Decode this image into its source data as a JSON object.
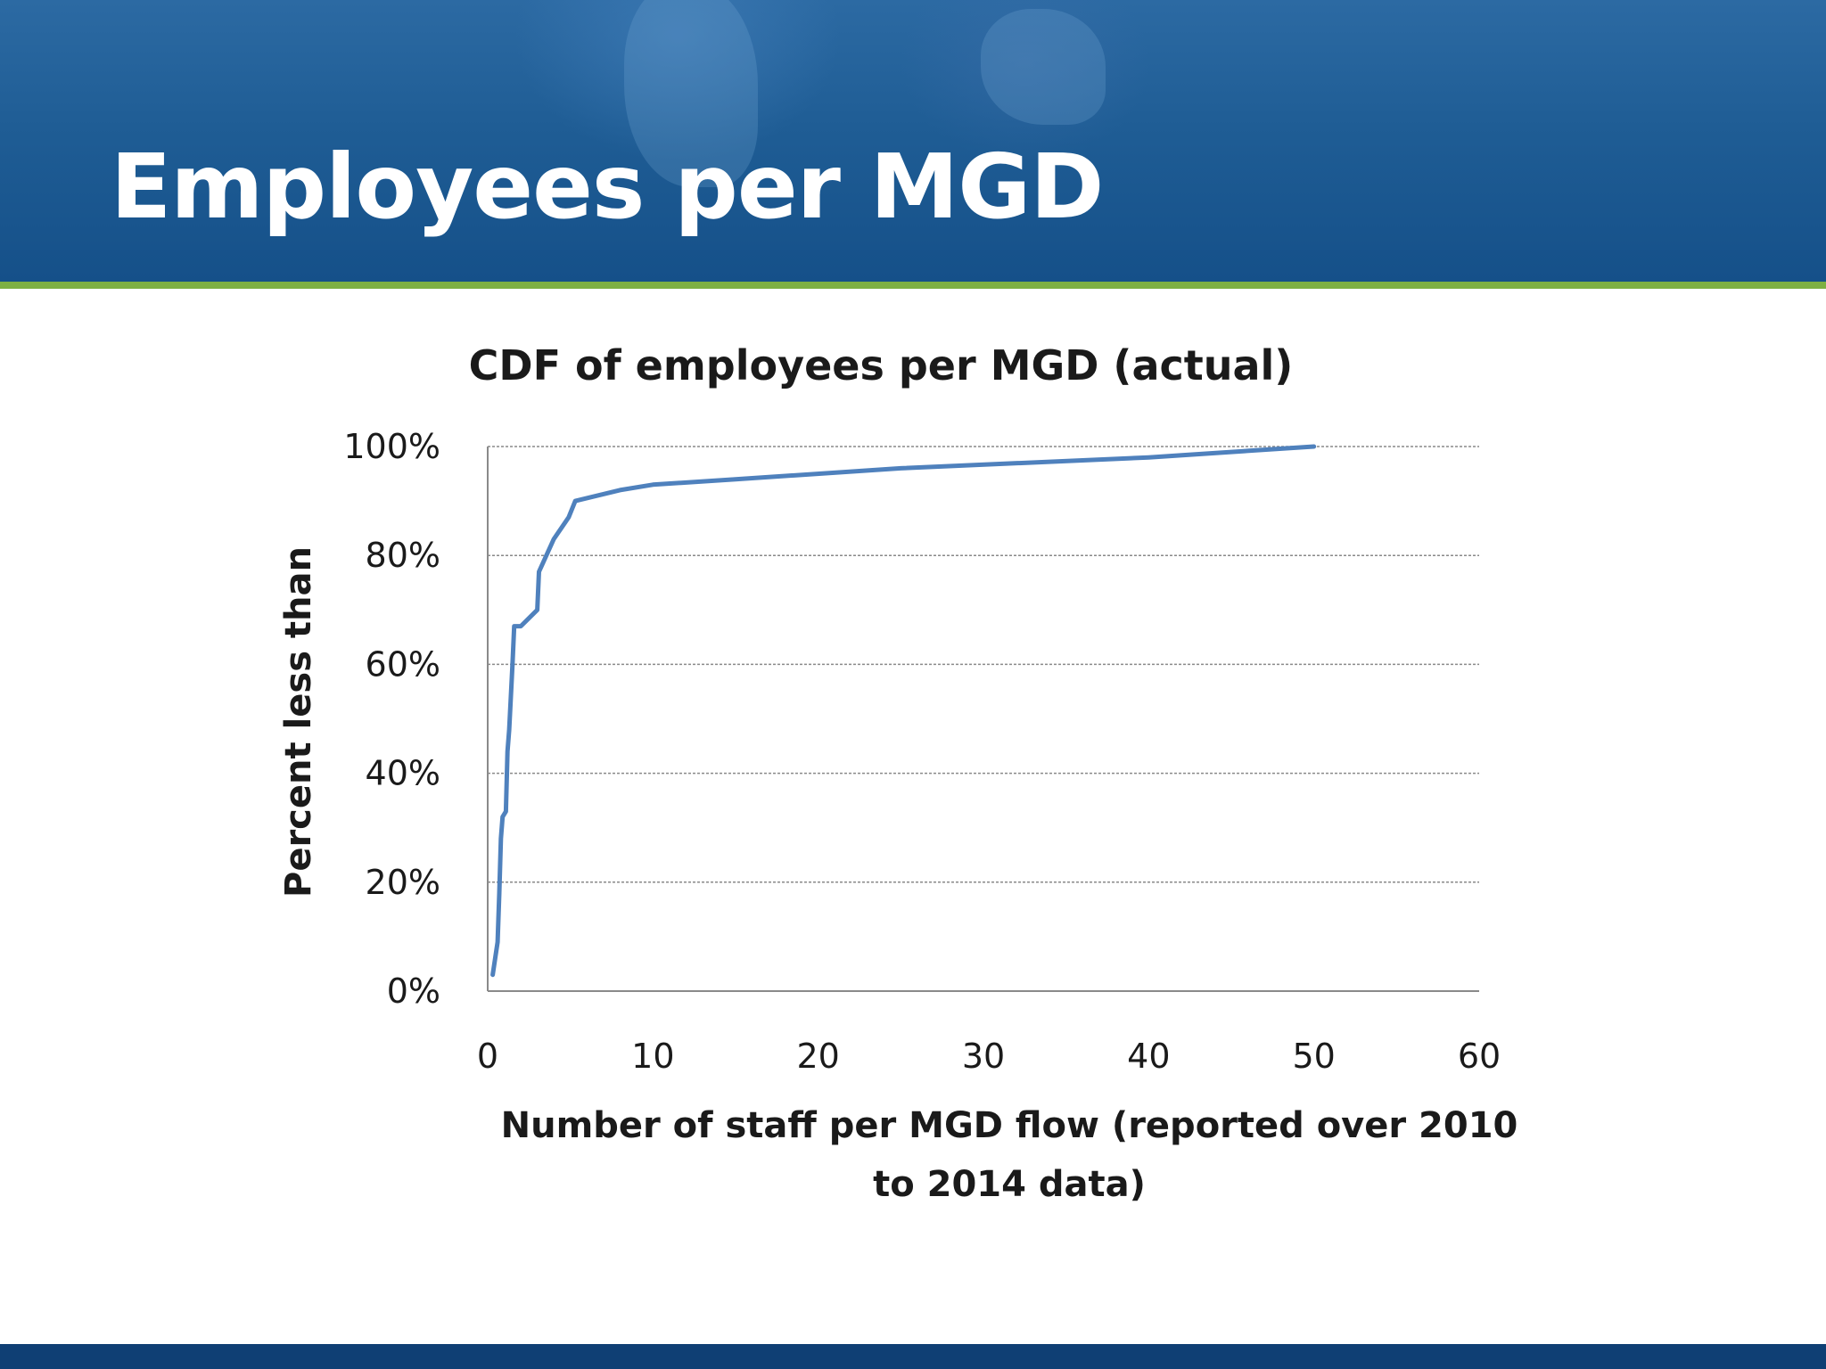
{
  "slide": {
    "title": "Employees per MGD"
  },
  "colors": {
    "header_blue": "#1f5d95",
    "accent_green": "#7eb043",
    "footer_blue": "#0f3f74",
    "line": "#4f81bd"
  },
  "chart_data": {
    "type": "line",
    "title": "CDF of employees per MGD (actual)",
    "xlabel_lines": [
      "Number of staff per MGD flow (reported over 2010",
      "to 2014 data)"
    ],
    "ylabel": "Percent less than",
    "xlim": [
      0,
      60
    ],
    "ylim": [
      0,
      1
    ],
    "x_ticks": [
      "0",
      "10",
      "20",
      "30",
      "40",
      "50",
      "60"
    ],
    "y_ticks": [
      "0%",
      "20%",
      "40%",
      "60%",
      "80%",
      "100%"
    ],
    "grid": "horizontal",
    "series": [
      {
        "x": [
          0.3,
          0.6,
          0.7,
          0.8,
          0.9,
          1.1,
          1.2,
          1.3,
          1.5,
          1.6,
          1.7,
          2.0,
          3.0,
          3.1,
          4.0,
          4.9,
          5.3,
          8.0,
          10.0,
          15.0,
          25.0,
          40.0,
          50.0
        ],
        "y": [
          0.03,
          0.09,
          0.18,
          0.28,
          0.32,
          0.33,
          0.44,
          0.48,
          0.6,
          0.67,
          0.67,
          0.67,
          0.7,
          0.77,
          0.83,
          0.87,
          0.9,
          0.92,
          0.93,
          0.94,
          0.96,
          0.98,
          1.0
        ]
      }
    ]
  }
}
